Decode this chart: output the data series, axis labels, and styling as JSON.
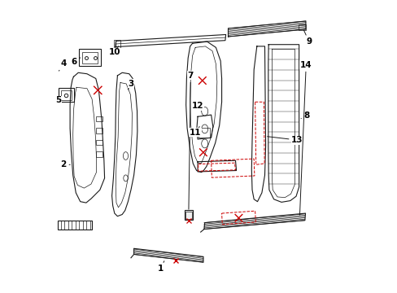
{
  "title": "",
  "bg_color": "#ffffff",
  "line_color": "#1a1a1a",
  "red_color": "#cc0000",
  "label_color": "#000000",
  "figsize": [
    4.89,
    3.6
  ],
  "dpi": 100
}
